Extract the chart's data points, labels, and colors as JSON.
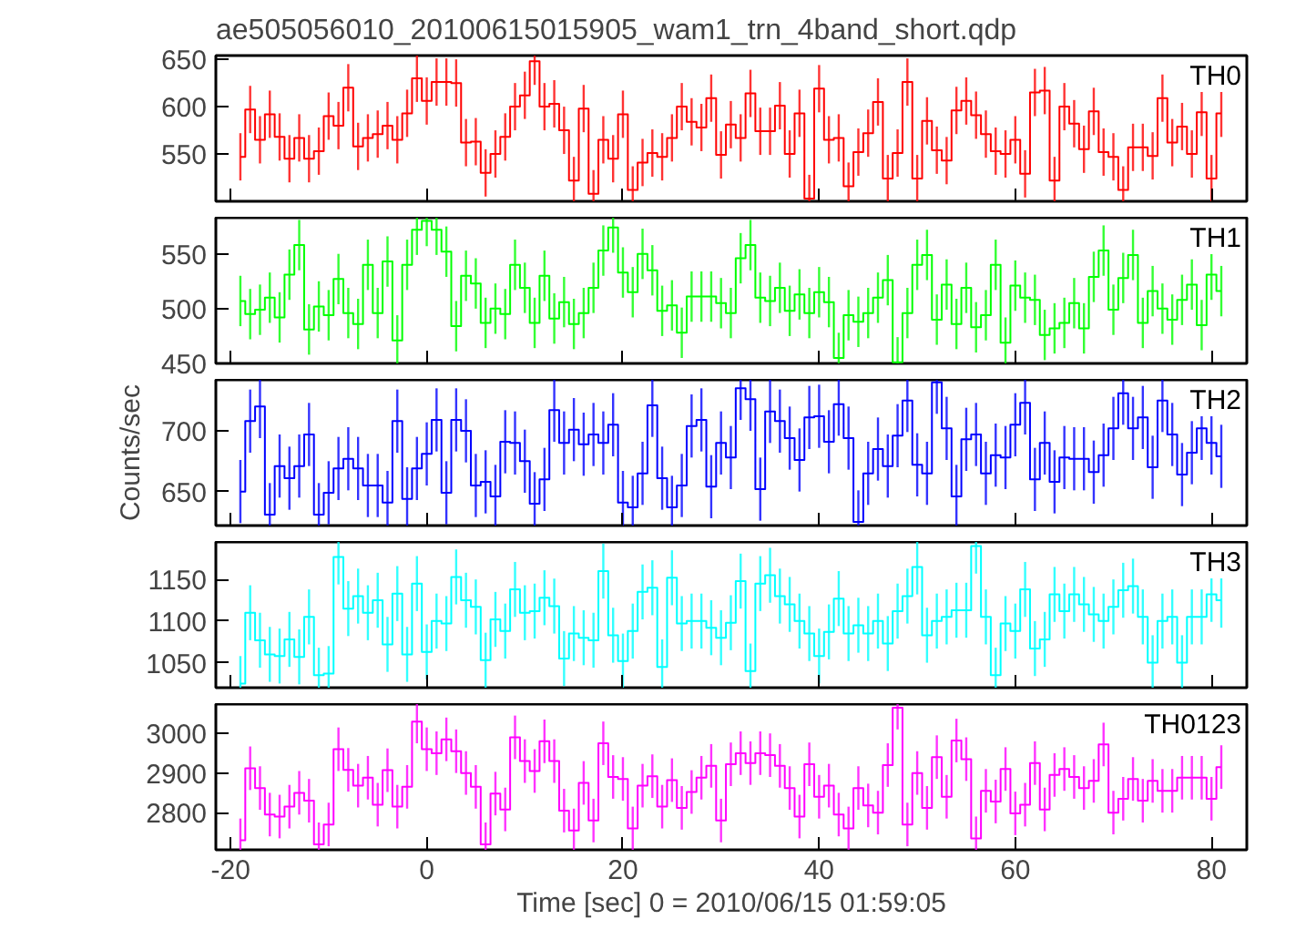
{
  "chart_data": [
    {
      "type": "step",
      "title": "ae505056010_20100615015905_wam1_trn_4band_short.qdp",
      "tick_labels": "y",
      "xlim": [
        -21.5,
        83.6
      ],
      "xticks": [
        -20,
        0,
        20,
        40,
        60,
        80
      ],
      "ylim": [
        500,
        654
      ],
      "yticks": [
        550,
        600,
        650
      ],
      "x": [
        -19,
        -18,
        -17,
        -16,
        -15,
        -14,
        -13,
        -12,
        -11,
        -10,
        -9,
        -8,
        -7,
        -6,
        -5,
        -4,
        -3,
        -2,
        -1,
        0,
        1,
        2,
        3,
        4,
        5,
        6,
        7,
        8,
        9,
        10,
        11,
        12,
        13,
        14,
        15,
        16,
        17,
        18,
        19,
        20,
        21,
        22,
        23,
        24,
        25,
        26,
        27,
        28,
        29,
        30,
        31,
        32,
        33,
        34,
        35,
        36,
        37,
        38,
        39,
        40,
        41,
        42,
        43,
        44,
        45,
        46,
        47,
        48,
        49,
        50,
        51,
        52,
        53,
        54,
        55,
        56,
        57,
        58,
        59,
        60,
        61,
        62,
        63,
        64,
        65,
        66,
        67,
        68,
        69,
        70,
        71,
        72,
        73,
        74,
        75,
        76,
        77,
        78,
        79,
        80,
        81
      ],
      "series": [
        {
          "name": "TH0",
          "color": "#ff0000",
          "values": [
            547,
            597,
            565,
            592,
            568,
            545,
            567,
            545,
            553,
            590,
            580,
            620,
            558,
            567,
            571,
            580,
            565,
            593,
            630,
            606,
            626,
            626,
            625,
            562,
            563,
            530,
            550,
            568,
            600,
            612,
            648,
            600,
            603,
            575,
            522,
            598,
            508,
            565,
            545,
            592,
            512,
            541,
            551,
            547,
            567,
            600,
            584,
            578,
            609,
            549,
            581,
            567,
            614,
            574,
            574,
            601,
            550,
            593,
            503,
            619,
            565,
            567,
            516,
            552,
            572,
            605,
            524,
            551,
            626,
            524,
            585,
            554,
            543,
            596,
            606,
            591,
            571,
            553,
            550,
            565,
            529,
            615,
            617,
            522,
            600,
            582,
            555,
            595,
            552,
            547,
            512,
            557,
            557,
            548,
            609,
            562,
            579,
            550,
            594,
            524,
            593
          ],
          "errors": [
            25,
            25,
            25,
            25,
            25,
            25,
            25,
            25,
            25,
            25,
            25,
            25,
            25,
            25,
            25,
            25,
            25,
            25,
            25,
            25,
            25,
            25,
            25,
            25,
            25,
            25,
            25,
            25,
            25,
            25,
            25,
            25,
            25,
            25,
            25,
            25,
            25,
            25,
            25,
            25,
            25,
            25,
            25,
            25,
            25,
            25,
            25,
            25,
            25,
            25,
            25,
            25,
            25,
            25,
            25,
            25,
            25,
            25,
            25,
            25,
            25,
            25,
            25,
            25,
            25,
            25,
            25,
            25,
            25,
            25,
            25,
            25,
            25,
            25,
            25,
            25,
            25,
            25,
            25,
            25,
            25,
            25,
            25,
            25,
            25,
            25,
            25,
            25,
            25,
            25,
            25,
            25,
            25,
            25,
            25,
            25,
            25,
            25,
            25,
            25,
            25
          ]
        }
      ]
    },
    {
      "type": "step",
      "tick_labels": "y",
      "xlim": [
        -21.5,
        83.6
      ],
      "xticks": [
        -20,
        0,
        20,
        40,
        60,
        80
      ],
      "ylim": [
        450,
        583
      ],
      "yticks": [
        450,
        500,
        550
      ],
      "x": [
        -19,
        -18,
        -17,
        -16,
        -15,
        -14,
        -13,
        -12,
        -11,
        -10,
        -9,
        -8,
        -7,
        -6,
        -5,
        -4,
        -3,
        -2,
        -1,
        0,
        1,
        2,
        3,
        4,
        5,
        6,
        7,
        8,
        9,
        10,
        11,
        12,
        13,
        14,
        15,
        16,
        17,
        18,
        19,
        20,
        21,
        22,
        23,
        24,
        25,
        26,
        27,
        28,
        29,
        30,
        31,
        32,
        33,
        34,
        35,
        36,
        37,
        38,
        39,
        40,
        41,
        42,
        43,
        44,
        45,
        46,
        47,
        48,
        49,
        50,
        51,
        52,
        53,
        54,
        55,
        56,
        57,
        58,
        59,
        60,
        61,
        62,
        63,
        64,
        65,
        66,
        67,
        68,
        69,
        70,
        71,
        72,
        73,
        74,
        75,
        76,
        77,
        78,
        79,
        80,
        81
      ],
      "series": [
        {
          "name": "TH1",
          "color": "#00ff00",
          "values": [
            507,
            495,
            499,
            510,
            492,
            531,
            558,
            481,
            502,
            494,
            527,
            496,
            486,
            540,
            496,
            543,
            471,
            540,
            572,
            580,
            572,
            552,
            484,
            530,
            523,
            487,
            500,
            495,
            540,
            519,
            487,
            530,
            491,
            506,
            486,
            496,
            519,
            553,
            574,
            533,
            515,
            550,
            535,
            498,
            503,
            478,
            511,
            511,
            511,
            505,
            496,
            546,
            558,
            510,
            507,
            519,
            498,
            513,
            496,
            515,
            506,
            455,
            494,
            488,
            496,
            510,
            526,
            451,
            496,
            540,
            549,
            490,
            522,
            486,
            519,
            483,
            494,
            540,
            469,
            521,
            510,
            508,
            476,
            482,
            487,
            505,
            482,
            529,
            553,
            499,
            528,
            549,
            487,
            516,
            500,
            490,
            508,
            522,
            485,
            531,
            516
          ],
          "errors": [
            23,
            23,
            23,
            23,
            23,
            23,
            23,
            23,
            23,
            23,
            23,
            23,
            23,
            23,
            23,
            23,
            23,
            23,
            23,
            23,
            23,
            23,
            23,
            23,
            23,
            23,
            23,
            23,
            23,
            23,
            23,
            23,
            23,
            23,
            23,
            23,
            23,
            23,
            23,
            23,
            23,
            23,
            23,
            23,
            23,
            23,
            23,
            23,
            23,
            23,
            23,
            23,
            23,
            23,
            23,
            23,
            23,
            23,
            23,
            23,
            23,
            23,
            23,
            23,
            23,
            23,
            23,
            23,
            23,
            23,
            23,
            23,
            23,
            23,
            23,
            23,
            23,
            23,
            23,
            23,
            23,
            23,
            23,
            23,
            23,
            23,
            23,
            23,
            23,
            23,
            23,
            23,
            23,
            23,
            23,
            23,
            23,
            23,
            23,
            23,
            23
          ]
        }
      ]
    },
    {
      "type": "step",
      "ylabel": "Counts/sec",
      "tick_labels": "y",
      "xlim": [
        -21.5,
        83.6
      ],
      "xticks": [
        -20,
        0,
        20,
        40,
        60,
        80
      ],
      "ylim": [
        622,
        742
      ],
      "yticks": [
        650,
        700
      ],
      "x": [
        -19,
        -18,
        -17,
        -16,
        -15,
        -14,
        -13,
        -12,
        -11,
        -10,
        -9,
        -8,
        -7,
        -6,
        -5,
        -4,
        -3,
        -2,
        -1,
        0,
        1,
        2,
        3,
        4,
        5,
        6,
        7,
        8,
        9,
        10,
        11,
        12,
        13,
        14,
        15,
        16,
        17,
        18,
        19,
        20,
        21,
        22,
        23,
        24,
        25,
        26,
        27,
        28,
        29,
        30,
        31,
        32,
        33,
        34,
        35,
        36,
        37,
        38,
        39,
        40,
        41,
        42,
        43,
        44,
        45,
        46,
        47,
        48,
        49,
        50,
        51,
        52,
        53,
        54,
        55,
        56,
        57,
        58,
        59,
        60,
        61,
        62,
        63,
        64,
        65,
        66,
        67,
        68,
        69,
        70,
        71,
        72,
        73,
        74,
        75,
        76,
        77,
        78,
        79,
        80,
        81
      ],
      "series": [
        {
          "name": "TH2",
          "color": "#0000ff",
          "values": [
            650,
            708,
            720,
            631,
            671,
            661,
            671,
            697,
            631,
            649,
            669,
            677,
            669,
            655,
            655,
            641,
            708,
            644,
            669,
            681,
            709,
            649,
            709,
            700,
            655,
            658,
            646,
            691,
            690,
            675,
            640,
            660,
            717,
            690,
            701,
            689,
            697,
            690,
            705,
            641,
            637,
            665,
            721,
            661,
            637,
            655,
            704,
            709,
            654,
            690,
            678,
            735,
            726,
            652,
            716,
            708,
            694,
            676,
            711,
            712,
            691,
            722,
            694,
            625,
            665,
            685,
            671,
            696,
            725,
            672,
            665,
            740,
            702,
            646,
            693,
            697,
            665,
            680,
            678,
            705,
            723,
            660,
            690,
            658,
            678,
            677,
            677,
            666,
            680,
            702,
            731,
            702,
            711,
            670,
            725,
            697,
            664,
            682,
            702,
            690,
            679
          ],
          "errors": [
            26,
            26,
            26,
            26,
            26,
            26,
            26,
            26,
            26,
            26,
            26,
            26,
            26,
            26,
            26,
            26,
            26,
            26,
            26,
            26,
            26,
            26,
            26,
            26,
            26,
            26,
            26,
            26,
            26,
            26,
            26,
            26,
            26,
            26,
            26,
            26,
            26,
            26,
            26,
            26,
            26,
            26,
            26,
            26,
            26,
            26,
            26,
            26,
            26,
            26,
            26,
            26,
            26,
            26,
            26,
            26,
            26,
            26,
            26,
            26,
            26,
            26,
            26,
            26,
            26,
            26,
            26,
            26,
            26,
            26,
            26,
            26,
            26,
            26,
            26,
            26,
            26,
            26,
            26,
            26,
            26,
            26,
            26,
            26,
            26,
            26,
            26,
            26,
            26,
            26,
            26,
            26,
            26,
            26,
            26,
            26,
            26,
            26,
            26,
            26,
            26
          ]
        }
      ]
    },
    {
      "type": "step",
      "tick_labels": "y",
      "xlim": [
        -21.5,
        83.6
      ],
      "xticks": [
        -20,
        0,
        20,
        40,
        60,
        80
      ],
      "ylim": [
        1020,
        1195
      ],
      "yticks": [
        1050,
        1100,
        1150
      ],
      "x": [
        -19,
        -18,
        -17,
        -16,
        -15,
        -14,
        -13,
        -12,
        -11,
        -10,
        -9,
        -8,
        -7,
        -6,
        -5,
        -4,
        -3,
        -2,
        -1,
        0,
        1,
        2,
        3,
        4,
        5,
        6,
        7,
        8,
        9,
        10,
        11,
        12,
        13,
        14,
        15,
        16,
        17,
        18,
        19,
        20,
        21,
        22,
        23,
        24,
        25,
        26,
        27,
        28,
        29,
        30,
        31,
        32,
        33,
        34,
        35,
        36,
        37,
        38,
        39,
        40,
        41,
        42,
        43,
        44,
        45,
        46,
        47,
        48,
        49,
        50,
        51,
        52,
        53,
        54,
        55,
        56,
        57,
        58,
        59,
        60,
        61,
        62,
        63,
        64,
        65,
        66,
        67,
        68,
        69,
        70,
        71,
        72,
        73,
        74,
        75,
        76,
        77,
        78,
        79,
        80,
        81
      ],
      "series": [
        {
          "name": "TH3",
          "color": "#00ffff",
          "values": [
            1025,
            1110,
            1077,
            1060,
            1058,
            1078,
            1057,
            1105,
            1035,
            1037,
            1177,
            1115,
            1130,
            1110,
            1125,
            1072,
            1133,
            1060,
            1145,
            1063,
            1100,
            1097,
            1153,
            1125,
            1117,
            1053,
            1102,
            1088,
            1138,
            1110,
            1112,
            1128,
            1118,
            1055,
            1085,
            1080,
            1077,
            1160,
            1083,
            1052,
            1088,
            1135,
            1140,
            1045,
            1152,
            1097,
            1100,
            1100,
            1092,
            1080,
            1098,
            1148,
            1040,
            1145,
            1155,
            1130,
            1120,
            1100,
            1085,
            1058,
            1087,
            1127,
            1085,
            1095,
            1085,
            1100,
            1073,
            1112,
            1130,
            1165,
            1083,
            1100,
            1105,
            1113,
            1113,
            1190,
            1105,
            1035,
            1097,
            1088,
            1138,
            1067,
            1078,
            1132,
            1112,
            1132,
            1120,
            1108,
            1100,
            1117,
            1137,
            1142,
            1105,
            1050,
            1100,
            1105,
            1050,
            1105,
            1105,
            1132,
            1125
          ],
          "errors": [
            33,
            33,
            33,
            33,
            33,
            33,
            33,
            33,
            33,
            33,
            33,
            33,
            33,
            33,
            33,
            33,
            33,
            33,
            33,
            33,
            33,
            33,
            33,
            33,
            33,
            33,
            33,
            33,
            33,
            33,
            33,
            33,
            33,
            33,
            33,
            33,
            33,
            33,
            33,
            33,
            33,
            33,
            33,
            33,
            33,
            33,
            33,
            33,
            33,
            33,
            33,
            33,
            33,
            33,
            33,
            33,
            33,
            33,
            33,
            33,
            33,
            33,
            33,
            33,
            33,
            33,
            33,
            33,
            33,
            33,
            33,
            33,
            33,
            33,
            33,
            33,
            33,
            33,
            33,
            33,
            33,
            33,
            33,
            33,
            33,
            33,
            33,
            33,
            33,
            33,
            33,
            33,
            33,
            33,
            33,
            33,
            33,
            33,
            33,
            33,
            33
          ]
        }
      ]
    },
    {
      "type": "step",
      "xlabel": "Time [sec] 0 = 2010/06/15 01:59:05",
      "xlim": [
        -21.5,
        83.6
      ],
      "xticks": [
        -20,
        0,
        20,
        40,
        60,
        80
      ],
      "ylim": [
        2706,
        3074
      ],
      "yticks": [
        2800,
        2900,
        3000
      ],
      "x": [
        -19,
        -18,
        -17,
        -16,
        -15,
        -14,
        -13,
        -12,
        -11,
        -10,
        -9,
        -8,
        -7,
        -6,
        -5,
        -4,
        -3,
        -2,
        -1,
        0,
        1,
        2,
        3,
        4,
        5,
        6,
        7,
        8,
        9,
        10,
        11,
        12,
        13,
        14,
        15,
        16,
        17,
        18,
        19,
        20,
        21,
        22,
        23,
        24,
        25,
        26,
        27,
        28,
        29,
        30,
        31,
        32,
        33,
        34,
        35,
        36,
        37,
        38,
        39,
        40,
        41,
        42,
        43,
        44,
        45,
        46,
        47,
        48,
        49,
        50,
        51,
        52,
        53,
        54,
        55,
        56,
        57,
        58,
        59,
        60,
        61,
        62,
        63,
        64,
        65,
        66,
        67,
        68,
        69,
        70,
        71,
        72,
        73,
        74,
        75,
        76,
        77,
        78,
        79,
        80,
        81
      ],
      "series": [
        {
          "name": "TH0123",
          "color": "#ff00ff",
          "values": [
            2730,
            2912,
            2862,
            2795,
            2790,
            2815,
            2850,
            2830,
            2720,
            2770,
            2960,
            2908,
            2868,
            2888,
            2820,
            2907,
            2815,
            2865,
            3030,
            2960,
            2950,
            2985,
            2955,
            2900,
            2865,
            2720,
            2848,
            2808,
            2990,
            2930,
            2905,
            2980,
            2930,
            2805,
            2755,
            2875,
            2780,
            2975,
            2890,
            2885,
            2760,
            2868,
            2892,
            2815,
            2882,
            2812,
            2852,
            2888,
            2918,
            2780,
            2922,
            2950,
            2925,
            2950,
            2945,
            2918,
            2862,
            2790,
            2922,
            2840,
            2868,
            2795,
            2760,
            2862,
            2818,
            2800,
            2920,
            3065,
            2770,
            2900,
            2812,
            2940,
            2840,
            2982,
            2935,
            2735,
            2855,
            2828,
            2910,
            2798,
            2820,
            2925,
            2808,
            2895,
            2910,
            2890,
            2862,
            2880,
            2972,
            2800,
            2835,
            2885,
            2830,
            2880,
            2855,
            2855,
            2888,
            2888,
            2888,
            2835,
            2915
          ],
          "errors": [
            55,
            55,
            55,
            55,
            55,
            55,
            55,
            55,
            55,
            55,
            55,
            55,
            55,
            55,
            55,
            55,
            55,
            55,
            55,
            55,
            55,
            55,
            55,
            55,
            55,
            55,
            55,
            55,
            55,
            55,
            55,
            55,
            55,
            55,
            55,
            55,
            55,
            55,
            55,
            55,
            55,
            55,
            55,
            55,
            55,
            55,
            55,
            55,
            55,
            55,
            55,
            55,
            55,
            55,
            55,
            55,
            55,
            55,
            55,
            55,
            55,
            55,
            55,
            55,
            55,
            55,
            55,
            55,
            55,
            55,
            55,
            55,
            55,
            55,
            55,
            55,
            55,
            55,
            55,
            55,
            55,
            55,
            55,
            55,
            55,
            55,
            55,
            55,
            55,
            55,
            55,
            55,
            55,
            55,
            55,
            55,
            55,
            55,
            55,
            55,
            55
          ]
        }
      ]
    }
  ]
}
